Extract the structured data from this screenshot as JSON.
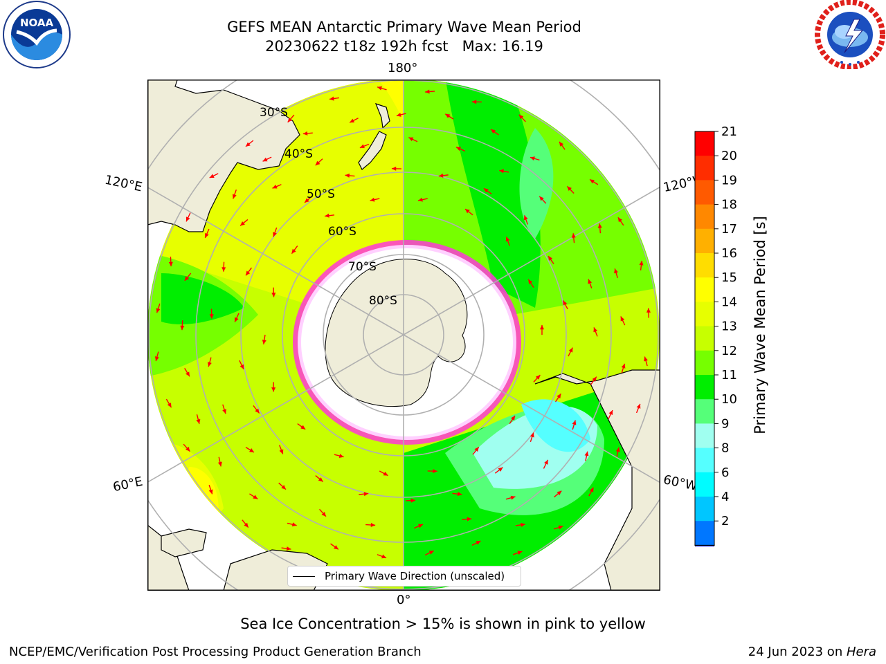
{
  "header": {
    "title_line1": "GEFS MEAN Antarctic Primary Wave Mean Period",
    "title_line2": "20230622 t18z 192h fcst   Max: 16.19"
  },
  "logos": {
    "left": "noaa-logo",
    "left_text": "NOAA",
    "right": "nws-logo"
  },
  "map": {
    "projection": "south-polar-stereographic",
    "longitude_labels": {
      "top": "180°",
      "bottom": "0°",
      "upper_left": "120°E",
      "lower_left": "60°E",
      "upper_right": "120°W",
      "lower_right": "60°W"
    },
    "latitude_labels": [
      "30°S",
      "40°S",
      "50°S",
      "60°S",
      "70°S",
      "80°S"
    ],
    "legend_label": "Primary Wave Direction (unscaled)",
    "arrow_color": "#ff0000",
    "land_color": "#efedd9",
    "sea_ice_color": "#ffffff"
  },
  "colorbar": {
    "label": "Primary Wave Mean Period [s]",
    "ticks": [
      "21",
      "20",
      "19",
      "18",
      "17",
      "16",
      "15",
      "14",
      "13",
      "12",
      "11",
      "10",
      "9",
      "8",
      "6",
      "4",
      "2"
    ],
    "colors_top_to_bottom": [
      "#ff0000",
      "#ff2d00",
      "#ff5a00",
      "#ff8800",
      "#ffb000",
      "#ffdd00",
      "#ffff00",
      "#e7ff00",
      "#c7ff00",
      "#76ff00",
      "#00ee00",
      "#55ff79",
      "#a0fff0",
      "#55ffff",
      "#00fcff",
      "#00c6ff",
      "#0077ff"
    ],
    "extend_color": "#0000ee"
  },
  "subcaption": "Sea Ice Concentration > 15% is shown in pink to yellow",
  "footer": {
    "left": "NCEP/EMC/Verification Post Processing Product Generation Branch",
    "right_prefix": "24 Jun 2023 on ",
    "right_machine": "Hera"
  }
}
